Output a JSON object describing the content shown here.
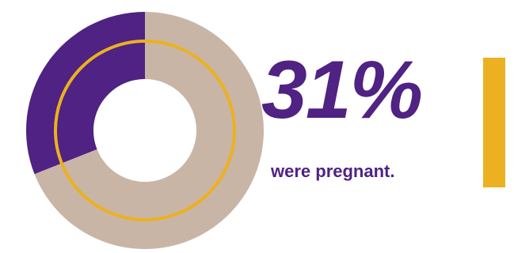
{
  "colors": {
    "highlight": "#4f2283",
    "remainder": "#c9b5a6",
    "accent": "#ebb120",
    "background": "#ffffff"
  },
  "headline": {
    "value": "31%",
    "caption": "were pregnant."
  },
  "chart_data": {
    "type": "pie",
    "variant": "donut",
    "title": "",
    "categories": [
      "",
      ""
    ],
    "values": [
      31,
      69
    ],
    "unit": "%",
    "start": "12 o'clock",
    "direction": "counter-clockwise",
    "legend": "none",
    "inner_ring": "gold outline"
  }
}
